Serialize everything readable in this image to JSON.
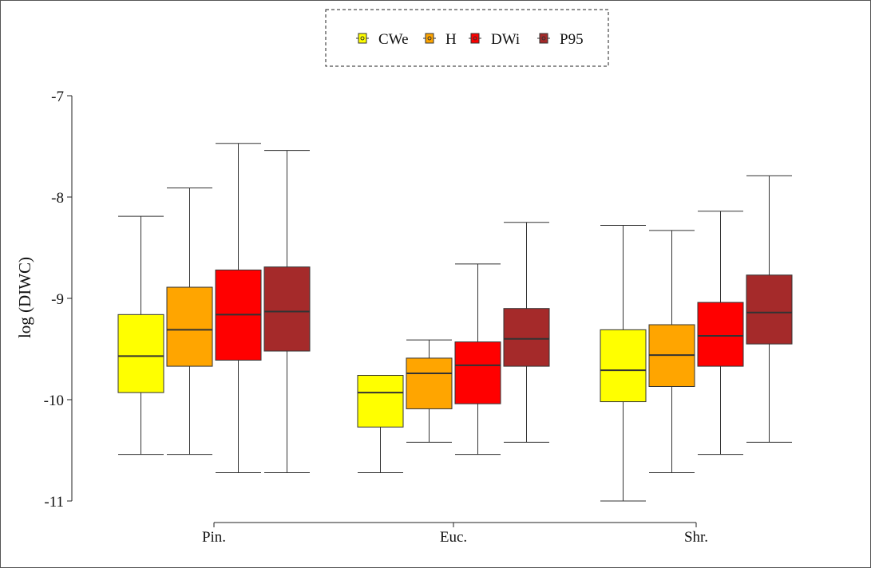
{
  "chart_data": {
    "type": "boxplot",
    "ylabel": "log (DIWC)",
    "xlabel": "",
    "ylim": [
      -11,
      -7
    ],
    "yticks": [
      -11,
      -10,
      -9,
      -8,
      -7
    ],
    "categories": [
      "Pin.",
      "Euc.",
      "Shr."
    ],
    "legend_position": "top-center",
    "series": [
      {
        "name": "CWe",
        "color": "#ffff00",
        "boxes": [
          {
            "min": -10.54,
            "q1": -9.93,
            "median": -9.57,
            "q3": -9.16,
            "max": -8.19
          },
          {
            "min": -10.72,
            "q1": -10.27,
            "median": -9.93,
            "q3": -9.76,
            "max": -9.76
          },
          {
            "min": -11.0,
            "q1": -10.02,
            "median": -9.71,
            "q3": -9.31,
            "max": -8.28
          }
        ]
      },
      {
        "name": "H",
        "color": "#ffa500",
        "boxes": [
          {
            "min": -10.54,
            "q1": -9.67,
            "median": -9.31,
            "q3": -8.89,
            "max": -7.91
          },
          {
            "min": -10.42,
            "q1": -10.09,
            "median": -9.74,
            "q3": -9.59,
            "max": -9.41
          },
          {
            "min": -10.72,
            "q1": -9.87,
            "median": -9.56,
            "q3": -9.26,
            "max": -8.33
          }
        ]
      },
      {
        "name": "DWi",
        "color": "#ff0000",
        "boxes": [
          {
            "min": -10.72,
            "q1": -9.61,
            "median": -9.16,
            "q3": -8.72,
            "max": -7.47
          },
          {
            "min": -10.54,
            "q1": -10.04,
            "median": -9.66,
            "q3": -9.43,
            "max": -8.66
          },
          {
            "min": -10.54,
            "q1": -9.67,
            "median": -9.37,
            "q3": -9.04,
            "max": -8.14
          }
        ]
      },
      {
        "name": "P95",
        "color": "#a52a2a",
        "boxes": [
          {
            "min": -10.72,
            "q1": -9.52,
            "median": -9.13,
            "q3": -8.69,
            "max": -7.54
          },
          {
            "min": -10.42,
            "q1": -9.67,
            "median": -9.4,
            "q3": -9.1,
            "max": -8.25
          },
          {
            "min": -10.42,
            "q1": -9.45,
            "median": -9.14,
            "q3": -8.77,
            "max": -7.79
          }
        ]
      }
    ]
  }
}
